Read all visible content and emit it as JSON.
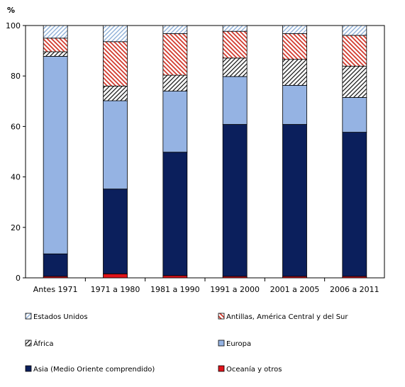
{
  "chart_data": {
    "type": "bar",
    "stacked": true,
    "ylabel": "%",
    "ylim": [
      0,
      100
    ],
    "yticks": [
      0,
      20,
      40,
      60,
      80,
      100
    ],
    "categories": [
      "Antes 1971",
      "1971 a 1980",
      "1981 a 1990",
      "1991 a 2000",
      "2001 a 2005",
      "2006 a 2011"
    ],
    "series": [
      {
        "name": "Oceanía y otros",
        "color": "#e0131a",
        "pattern": "solid",
        "values": [
          0.6,
          1.6,
          0.9,
          0.6,
          0.6,
          0.6
        ]
      },
      {
        "name": "Asia (Medio Oriente comprendido)",
        "color": "#0b1f5c",
        "pattern": "solid",
        "values": [
          8.9,
          33.6,
          48.9,
          60.2,
          60.2,
          57.1
        ]
      },
      {
        "name": "Europa",
        "color": "#95b3e3",
        "pattern": "solid",
        "values": [
          78.3,
          35.0,
          24.2,
          19.0,
          15.5,
          13.8
        ]
      },
      {
        "name": "África",
        "color": "#1a1a1a",
        "pattern": "hatch-dark",
        "values": [
          1.8,
          5.8,
          6.3,
          7.3,
          10.3,
          12.4
        ]
      },
      {
        "name": "Antillas, América Central y del Sur",
        "color": "#d23a2e",
        "pattern": "hatch-red",
        "values": [
          5.4,
          17.6,
          16.5,
          10.6,
          10.2,
          12.2
        ]
      },
      {
        "name": "Estados Unidos",
        "color": "#8fb0d8",
        "pattern": "hatch-blue",
        "values": [
          5.0,
          6.4,
          3.2,
          2.3,
          3.2,
          3.9
        ]
      }
    ],
    "legend": {
      "placement": "bottom",
      "order": [
        "Estados Unidos",
        "Antillas, América Central y del Sur",
        "África",
        "Europa",
        "Asia (Medio Oriente comprendido)",
        "Oceanía y otros"
      ]
    },
    "grid": false
  }
}
